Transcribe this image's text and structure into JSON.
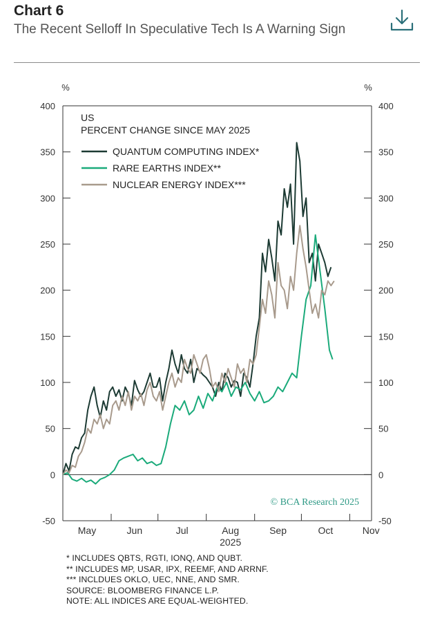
{
  "header": {
    "title": "Chart 6",
    "subtitle": "The Recent Selloff In Speculative Tech Is A Warning Sign",
    "download_icon": "download-icon"
  },
  "chart_data": {
    "type": "line",
    "region_label": "US",
    "title": "PERCENT CHANGE SINCE MAY 2025",
    "ylabel_left": "%",
    "ylabel_right": "%",
    "ylim": [
      -50,
      400
    ],
    "yticks": [
      -50,
      0,
      50,
      100,
      150,
      200,
      250,
      300,
      350,
      400
    ],
    "xlim": [
      "2025-05-01",
      "2025-11-15"
    ],
    "x_ticks": [
      "May",
      "Jun",
      "Jul",
      "Aug",
      "Sep",
      "Oct",
      "Nov"
    ],
    "x_year_label": "2025",
    "grid": false,
    "legend_position": "top-left",
    "watermark": "© BCA Research 2025",
    "series": [
      {
        "name": "QUANTUM COMPUTING INDEX*",
        "color": "#1c3a33",
        "x": [
          "2025-05-01",
          "2025-05-03",
          "2025-05-05",
          "2025-05-07",
          "2025-05-09",
          "2025-05-11",
          "2025-05-13",
          "2025-05-15",
          "2025-05-17",
          "2025-05-19",
          "2025-05-21",
          "2025-05-23",
          "2025-05-25",
          "2025-05-27",
          "2025-05-29",
          "2025-05-31",
          "2025-06-02",
          "2025-06-04",
          "2025-06-06",
          "2025-06-08",
          "2025-06-10",
          "2025-06-12",
          "2025-06-14",
          "2025-06-16",
          "2025-06-18",
          "2025-06-20",
          "2025-06-22",
          "2025-06-24",
          "2025-06-26",
          "2025-06-28",
          "2025-06-30",
          "2025-07-02",
          "2025-07-04",
          "2025-07-06",
          "2025-07-08",
          "2025-07-10",
          "2025-07-12",
          "2025-07-14",
          "2025-07-16",
          "2025-07-18",
          "2025-07-20",
          "2025-07-22",
          "2025-07-24",
          "2025-07-26",
          "2025-07-28",
          "2025-07-30",
          "2025-08-01",
          "2025-08-03",
          "2025-08-05",
          "2025-08-07",
          "2025-08-09",
          "2025-08-11",
          "2025-08-13",
          "2025-08-15",
          "2025-08-17",
          "2025-08-19",
          "2025-08-21",
          "2025-08-23",
          "2025-08-25",
          "2025-08-27",
          "2025-08-29",
          "2025-08-31",
          "2025-09-02",
          "2025-09-04",
          "2025-09-06",
          "2025-09-08",
          "2025-09-10",
          "2025-09-12",
          "2025-09-14",
          "2025-09-16",
          "2025-09-18",
          "2025-09-20",
          "2025-09-22",
          "2025-09-24",
          "2025-09-26",
          "2025-09-28",
          "2025-09-30",
          "2025-10-02",
          "2025-10-04",
          "2025-10-06",
          "2025-10-08",
          "2025-10-10",
          "2025-10-12",
          "2025-10-14",
          "2025-10-16",
          "2025-10-18",
          "2025-10-20"
        ],
        "values": [
          0,
          12,
          4,
          22,
          30,
          28,
          40,
          45,
          70,
          85,
          95,
          75,
          62,
          80,
          70,
          90,
          95,
          85,
          92,
          80,
          95,
          88,
          75,
          102,
          92,
          85,
          90,
          100,
          110,
          95,
          95,
          105,
          80,
          100,
          115,
          135,
          120,
          110,
          130,
          115,
          110,
          125,
          100,
          115,
          112,
          108,
          105,
          100,
          95,
          85,
          100,
          90,
          110,
          105,
          95,
          102,
          100,
          85,
          110,
          105,
          95,
          120,
          150,
          170,
          240,
          220,
          255,
          235,
          210,
          275,
          260,
          310,
          290,
          315,
          250,
          360,
          340,
          280,
          300,
          230,
          240,
          210,
          250,
          240,
          230,
          215,
          225
        ]
      },
      {
        "name": "RARE EARTHS INDEX**",
        "color": "#1aaa7a",
        "x": [
          "2025-05-01",
          "2025-05-04",
          "2025-05-07",
          "2025-05-10",
          "2025-05-13",
          "2025-05-16",
          "2025-05-19",
          "2025-05-22",
          "2025-05-25",
          "2025-05-28",
          "2025-05-31",
          "2025-06-03",
          "2025-06-06",
          "2025-06-09",
          "2025-06-12",
          "2025-06-15",
          "2025-06-18",
          "2025-06-21",
          "2025-06-24",
          "2025-06-27",
          "2025-06-30",
          "2025-07-03",
          "2025-07-06",
          "2025-07-09",
          "2025-07-12",
          "2025-07-15",
          "2025-07-18",
          "2025-07-21",
          "2025-07-24",
          "2025-07-27",
          "2025-07-30",
          "2025-08-02",
          "2025-08-05",
          "2025-08-08",
          "2025-08-11",
          "2025-08-14",
          "2025-08-17",
          "2025-08-20",
          "2025-08-23",
          "2025-08-26",
          "2025-08-29",
          "2025-09-01",
          "2025-09-04",
          "2025-09-07",
          "2025-09-10",
          "2025-09-13",
          "2025-09-16",
          "2025-09-19",
          "2025-09-22",
          "2025-09-25",
          "2025-09-28",
          "2025-10-01",
          "2025-10-04",
          "2025-10-07",
          "2025-10-10",
          "2025-10-13",
          "2025-10-16",
          "2025-10-19",
          "2025-10-21"
        ],
        "values": [
          0,
          2,
          -5,
          -7,
          -4,
          -8,
          -6,
          -10,
          -5,
          -3,
          0,
          5,
          15,
          18,
          20,
          22,
          15,
          18,
          12,
          14,
          10,
          12,
          30,
          55,
          75,
          70,
          80,
          65,
          70,
          85,
          72,
          88,
          80,
          95,
          90,
          100,
          85,
          95,
          92,
          100,
          88,
          80,
          90,
          78,
          80,
          85,
          95,
          90,
          100,
          110,
          105,
          150,
          190,
          205,
          260,
          220,
          180,
          135,
          125
        ]
      },
      {
        "name": "NUCLEAR ENERGY INDEX***",
        "color": "#a89a8c",
        "x": [
          "2025-05-01",
          "2025-05-03",
          "2025-05-05",
          "2025-05-07",
          "2025-05-09",
          "2025-05-11",
          "2025-05-13",
          "2025-05-15",
          "2025-05-17",
          "2025-05-19",
          "2025-05-21",
          "2025-05-23",
          "2025-05-25",
          "2025-05-27",
          "2025-05-29",
          "2025-05-31",
          "2025-06-02",
          "2025-06-04",
          "2025-06-06",
          "2025-06-08",
          "2025-06-10",
          "2025-06-12",
          "2025-06-14",
          "2025-06-16",
          "2025-06-18",
          "2025-06-20",
          "2025-06-22",
          "2025-06-24",
          "2025-06-26",
          "2025-06-28",
          "2025-06-30",
          "2025-07-02",
          "2025-07-04",
          "2025-07-06",
          "2025-07-08",
          "2025-07-10",
          "2025-07-12",
          "2025-07-14",
          "2025-07-16",
          "2025-07-18",
          "2025-07-20",
          "2025-07-22",
          "2025-07-24",
          "2025-07-26",
          "2025-07-28",
          "2025-07-30",
          "2025-08-01",
          "2025-08-03",
          "2025-08-05",
          "2025-08-07",
          "2025-08-09",
          "2025-08-11",
          "2025-08-13",
          "2025-08-15",
          "2025-08-17",
          "2025-08-19",
          "2025-08-21",
          "2025-08-23",
          "2025-08-25",
          "2025-08-27",
          "2025-08-29",
          "2025-08-31",
          "2025-09-02",
          "2025-09-04",
          "2025-09-06",
          "2025-09-08",
          "2025-09-10",
          "2025-09-12",
          "2025-09-14",
          "2025-09-16",
          "2025-09-18",
          "2025-09-20",
          "2025-09-22",
          "2025-09-24",
          "2025-09-26",
          "2025-09-28",
          "2025-09-30",
          "2025-10-02",
          "2025-10-04",
          "2025-10-06",
          "2025-10-08",
          "2025-10-10",
          "2025-10-12",
          "2025-10-14",
          "2025-10-16",
          "2025-10-18",
          "2025-10-20",
          "2025-10-22"
        ],
        "values": [
          0,
          5,
          2,
          10,
          8,
          20,
          25,
          35,
          50,
          45,
          60,
          55,
          65,
          50,
          60,
          55,
          75,
          80,
          70,
          85,
          75,
          90,
          70,
          85,
          80,
          88,
          75,
          92,
          100,
          85,
          80,
          90,
          70,
          85,
          100,
          110,
          95,
          105,
          100,
          125,
          115,
          110,
          130,
          120,
          110,
          125,
          130,
          115,
          95,
          100,
          90,
          110,
          100,
          115,
          105,
          95,
          120,
          110,
          115,
          100,
          125,
          120,
          130,
          160,
          190,
          175,
          210,
          195,
          170,
          230,
          205,
          200,
          180,
          215,
          200,
          240,
          270,
          245,
          225,
          200,
          175,
          185,
          170,
          200,
          195,
          210,
          205,
          210
        ]
      }
    ]
  },
  "footnotes": {
    "note1": "*  INCLUDES QBTS, RGTI, IONQ, AND QUBT.",
    "note2": "** INCLUDES MP, USAR, IPX, REEMF, AND ARRNF.",
    "note3": "*** INCLDUES OKLO, UEC, NNE, AND SMR.",
    "source": "SOURCE: BLOOMBERG FINANCE L.P.",
    "note": "NOTE: ALL INDICES ARE EQUAL-WEIGHTED."
  }
}
